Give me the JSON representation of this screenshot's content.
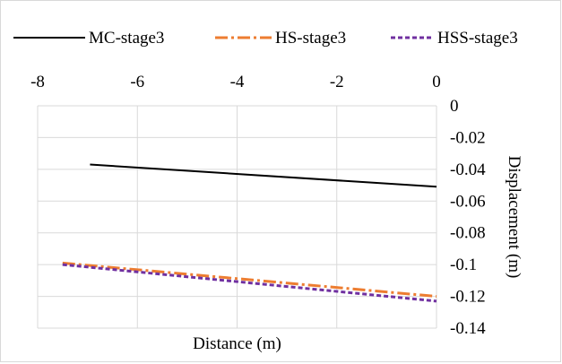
{
  "chart_data": {
    "type": "line",
    "title": "",
    "xlabel": "Distance (m)",
    "ylabel": "Displacement (m)",
    "xlim": [
      -8,
      0
    ],
    "ylim": [
      -0.14,
      0
    ],
    "x_ticks": [
      "-8",
      "-6",
      "-4",
      "-2",
      "0"
    ],
    "y_ticks": [
      "0",
      "-0.02",
      "-0.04",
      "-0.06",
      "-0.08",
      "-0.1",
      "-0.12",
      "-0.14"
    ],
    "x_axis_position": "top",
    "y_axis_position": "right",
    "x_reversed": false,
    "y_reversed": true,
    "grid": true,
    "legend_position": "top",
    "series": [
      {
        "name": "MC-stage3",
        "color": "#000000",
        "dash": "solid",
        "x": [
          -6.95,
          0
        ],
        "y": [
          -0.037,
          -0.051
        ]
      },
      {
        "name": "HS-stage3",
        "color": "#ED7D31",
        "dash": "dashdot",
        "x": [
          -7.5,
          0
        ],
        "y": [
          -0.099,
          -0.12
        ]
      },
      {
        "name": "HSS-stage3",
        "color": "#7030A0",
        "dash": "dash",
        "x": [
          -7.5,
          0
        ],
        "y": [
          -0.1,
          -0.123
        ]
      }
    ]
  }
}
